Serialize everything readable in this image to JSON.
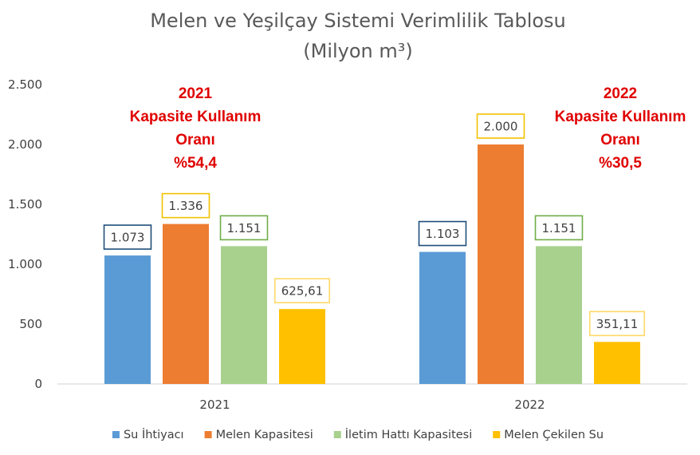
{
  "chart_data": {
    "type": "bar",
    "title": "Melen ve Yeşilçay Sistemi Verimlilik Tablosu",
    "subtitle": "(Milyon m³)",
    "categories": [
      "2021",
      "2022"
    ],
    "series": [
      {
        "name": "Su İhtiyacı",
        "color": "#5b9bd5",
        "label_border": "#1f4e79",
        "values": [
          1073,
          1103
        ],
        "labels": [
          "1.073",
          "1.103"
        ]
      },
      {
        "name": "Melen Kapasitesi",
        "color": "#ed7d31",
        "label_border": "#f2c200",
        "values": [
          1336,
          2000
        ],
        "labels": [
          "1.336",
          "2.000"
        ]
      },
      {
        "name": "İletim Hattı Kapasitesi",
        "color": "#a9d18e",
        "label_border": "#70ad47",
        "values": [
          1151,
          1151
        ],
        "labels": [
          "1.151",
          "1.151"
        ]
      },
      {
        "name": "Melen Çekilen Su",
        "color": "#ffc000",
        "label_border": "#ffd966",
        "values": [
          625.61,
          351.11
        ],
        "labels": [
          "625,61",
          "351,11"
        ]
      }
    ],
    "ylim": [
      0,
      2500
    ],
    "yticks": [
      0,
      500,
      1000,
      1500,
      2000,
      2500
    ],
    "ytick_labels": [
      "0",
      "500",
      "1.000",
      "1.500",
      "2.000",
      "2.500"
    ],
    "grid": false,
    "legend": "bottom",
    "annotations": [
      {
        "lines": [
          "2021",
          "Kapasite Kullanım",
          "Oranı",
          "%54,4"
        ],
        "color": "#e00000"
      },
      {
        "lines": [
          "2022",
          "Kapasite Kullanım",
          "Oranı",
          "%30,5"
        ],
        "color": "#e00000"
      }
    ]
  }
}
